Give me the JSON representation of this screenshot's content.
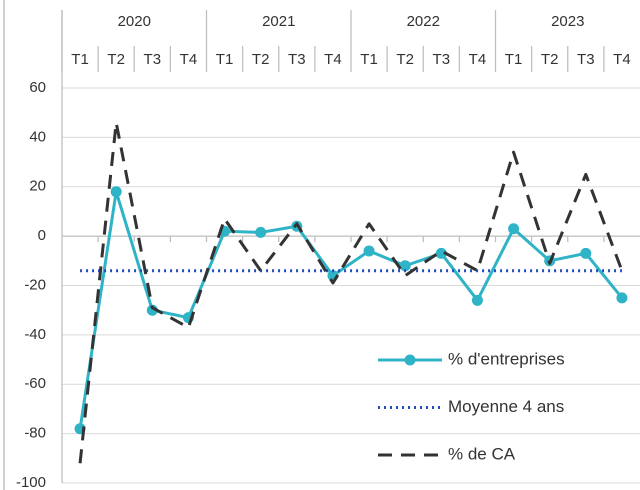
{
  "chart_data": {
    "type": "line",
    "category_groups": [
      "2020",
      "2021",
      "2022",
      "2023"
    ],
    "categories": [
      "T1",
      "T2",
      "T3",
      "T4",
      "T1",
      "T2",
      "T3",
      "T4",
      "T1",
      "T2",
      "T3",
      "T4",
      "T1",
      "T2",
      "T3",
      "T4"
    ],
    "series": [
      {
        "name": "% d'entreprises",
        "color": "#2fb3c6",
        "style": "solid-markers",
        "values": [
          -78,
          18,
          -30,
          -33,
          2,
          1.5,
          4,
          -16,
          -6,
          -12,
          -7,
          -26,
          3,
          -10,
          -7,
          -25
        ]
      },
      {
        "name": "Moyenne 4 ans",
        "color": "#1f4fbf",
        "style": "dotted",
        "values": [
          -14,
          -14,
          -14,
          -14,
          -14,
          -14,
          -14,
          -14,
          -14,
          -14,
          -14,
          -14,
          -14,
          -14,
          -14,
          -14
        ]
      },
      {
        "name": "% de CA",
        "color": "#333333",
        "style": "dashed",
        "values": [
          -92,
          46,
          -29,
          -37,
          7,
          -14,
          5,
          -19,
          5,
          -16,
          -6,
          -14,
          34,
          -11,
          25,
          -14
        ]
      }
    ],
    "ylim": [
      -100,
      60
    ],
    "yticks": [
      -100,
      -80,
      -60,
      -40,
      -20,
      0,
      20,
      40,
      60
    ],
    "grid": true,
    "legend": "lower right"
  }
}
